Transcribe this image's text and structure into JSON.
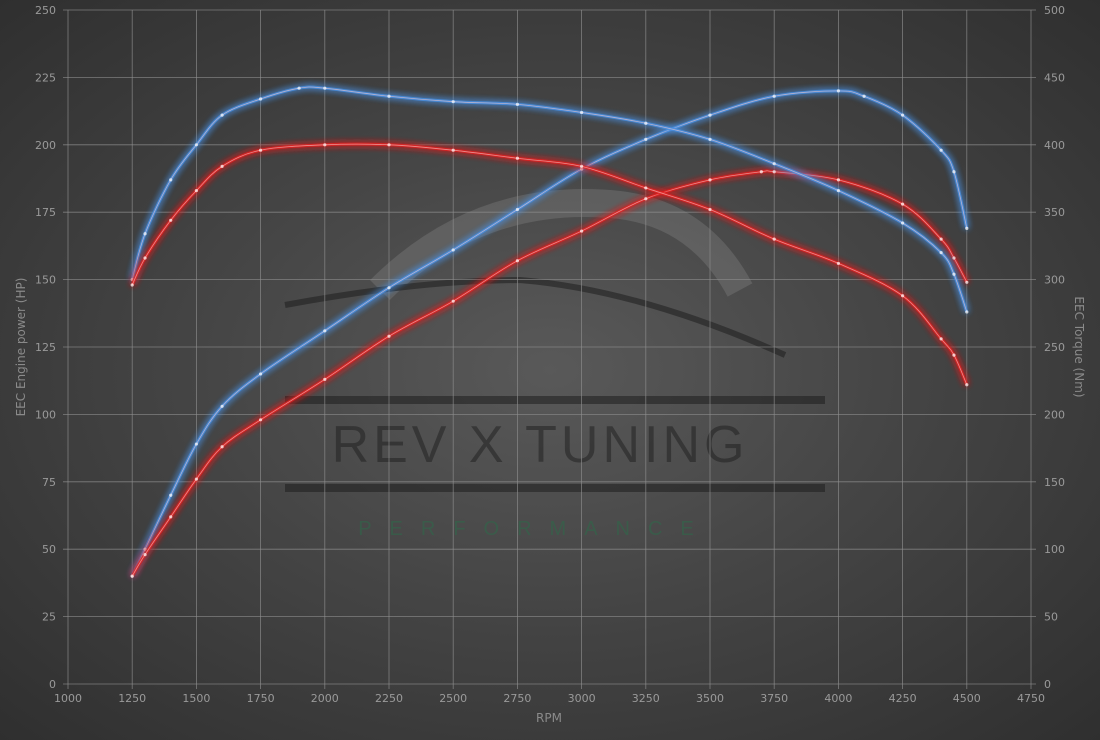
{
  "chart_data": {
    "type": "line",
    "title": "",
    "xlabel": "RPM",
    "ylabel": "EEC Engine power (HP)",
    "y2label": "EEC Torque (Nm)",
    "xlim": [
      1000,
      4750
    ],
    "ylim": [
      0,
      250
    ],
    "y2lim": [
      0,
      500
    ],
    "grid": true,
    "x_ticks": [
      1000,
      1250,
      1500,
      1750,
      2000,
      2250,
      2500,
      2750,
      3000,
      3250,
      3500,
      3750,
      4000,
      4250,
      4500,
      4750
    ],
    "y_ticks": [
      0,
      25,
      50,
      75,
      100,
      125,
      150,
      175,
      200,
      225,
      250
    ],
    "y2_ticks": [
      0,
      50,
      100,
      150,
      200,
      250,
      300,
      350,
      400,
      450,
      500
    ],
    "series": [
      {
        "axis": "left",
        "color": "#4a90e2",
        "x": [
          1250,
          1300,
          1400,
          1500,
          1600,
          1750,
          2000,
          2250,
          2500,
          2750,
          3000,
          3250,
          3500,
          3750,
          4000,
          4100,
          4250,
          4400,
          4450,
          4500
        ],
        "values": [
          40,
          50,
          70,
          89,
          103,
          115,
          131,
          147,
          161,
          176,
          191,
          202,
          211,
          218,
          220,
          218,
          211,
          198,
          190,
          169
        ]
      },
      {
        "axis": "left",
        "color": "#e02020",
        "x": [
          1250,
          1300,
          1400,
          1500,
          1600,
          1750,
          2000,
          2250,
          2500,
          2750,
          3000,
          3250,
          3500,
          3700,
          3750,
          4000,
          4250,
          4400,
          4450,
          4500
        ],
        "values": [
          40,
          48,
          62,
          76,
          88,
          98,
          113,
          129,
          142,
          157,
          168,
          180,
          187,
          190,
          190,
          187,
          178,
          165,
          158,
          149
        ]
      },
      {
        "axis": "right",
        "color": "#4a90e2",
        "x": [
          1250,
          1300,
          1400,
          1500,
          1600,
          1750,
          1900,
          2000,
          2250,
          2500,
          2750,
          3000,
          3250,
          3500,
          3750,
          4000,
          4250,
          4400,
          4450,
          4500
        ],
        "values": [
          300,
          334,
          374,
          400,
          422,
          434,
          442,
          442,
          436,
          432,
          430,
          424,
          416,
          404,
          386,
          366,
          342,
          320,
          304,
          276
        ]
      },
      {
        "axis": "right",
        "color": "#e02020",
        "x": [
          1250,
          1300,
          1400,
          1500,
          1600,
          1750,
          2000,
          2250,
          2500,
          2750,
          3000,
          3250,
          3500,
          3750,
          4000,
          4250,
          4400,
          4450,
          4500
        ],
        "values": [
          296,
          316,
          344,
          366,
          384,
          396,
          400,
          400,
          396,
          390,
          384,
          368,
          352,
          330,
          312,
          288,
          256,
          244,
          222
        ]
      }
    ]
  },
  "watermark": {
    "brand": "REV X TUNING",
    "tagline": "PERFORMANCE"
  }
}
